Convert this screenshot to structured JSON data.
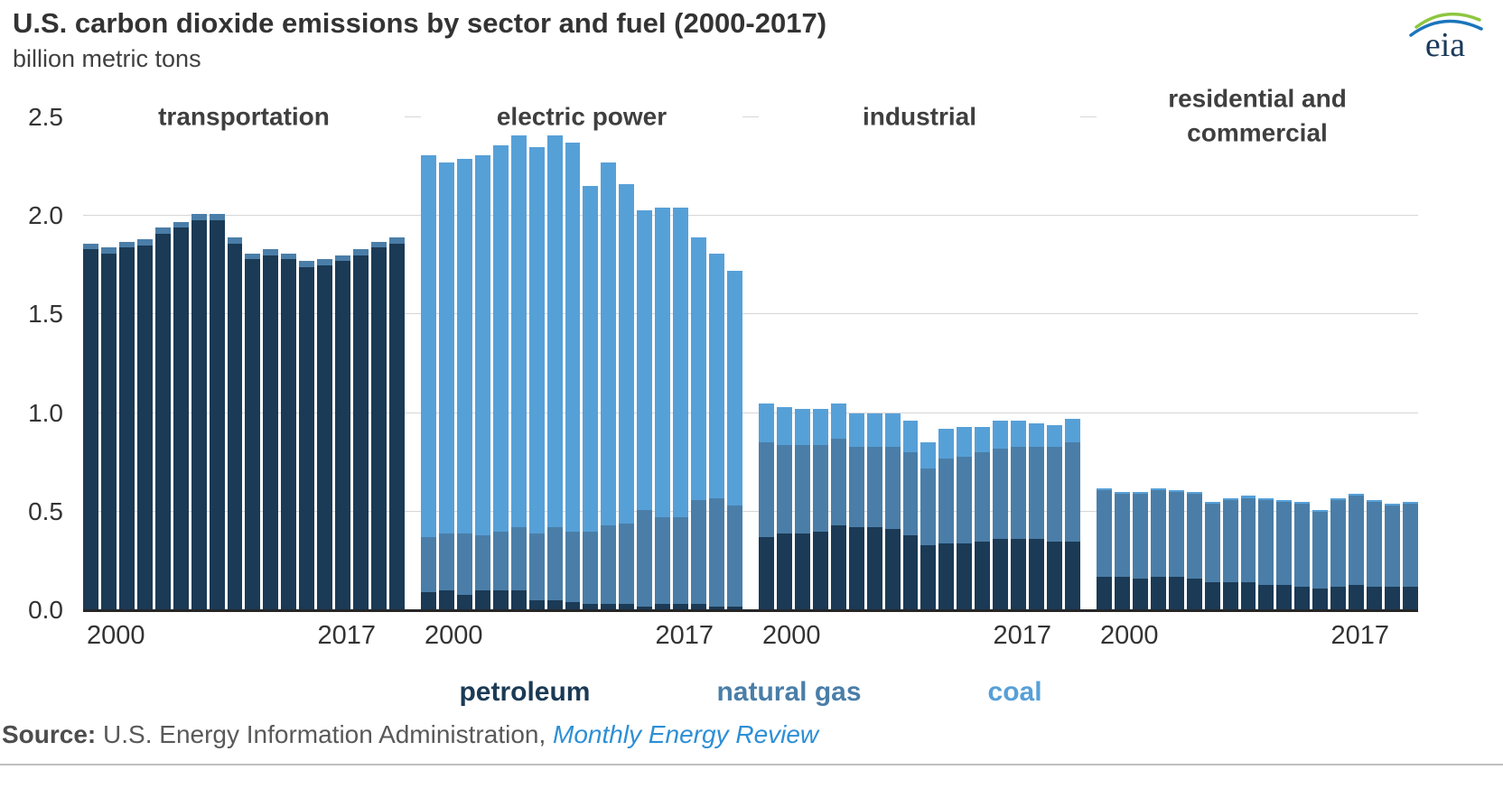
{
  "header": {
    "title": "U.S. carbon dioxide emissions by sector and fuel (2000-2017)",
    "subtitle": "billion metric tons",
    "logo_text": "eia"
  },
  "source": {
    "prefix": "Source:",
    "text": " U.S. Energy Information Administration, ",
    "link": "Monthly Energy Review"
  },
  "chart_data": {
    "type": "bar",
    "stacked": true,
    "title": "U.S. carbon dioxide emissions by sector and fuel (2000-2017)",
    "ylabel": "billion metric tons",
    "ylim": [
      0,
      2.5
    ],
    "yticks": [
      0.0,
      0.5,
      1.0,
      1.5,
      2.0,
      2.5
    ],
    "grid": true,
    "legend_position": "bottom",
    "years": [
      2000,
      2001,
      2002,
      2003,
      2004,
      2005,
      2006,
      2007,
      2008,
      2009,
      2010,
      2011,
      2012,
      2013,
      2014,
      2015,
      2016,
      2017
    ],
    "x_tick_labels": [
      "2000",
      "2017"
    ],
    "fuels": [
      {
        "name": "petroleum",
        "color": "#1b3a55"
      },
      {
        "name": "natural gas",
        "color": "#4a7ea8"
      },
      {
        "name": "coal",
        "color": "#56a0d8"
      }
    ],
    "groups": [
      {
        "label": "transportation",
        "series": [
          {
            "name": "petroleum",
            "values": [
              1.83,
              1.81,
              1.84,
              1.85,
              1.91,
              1.94,
              1.98,
              1.98,
              1.86,
              1.78,
              1.8,
              1.78,
              1.74,
              1.75,
              1.77,
              1.8,
              1.84,
              1.86
            ]
          },
          {
            "name": "natural gas",
            "values": [
              0.03,
              0.03,
              0.03,
              0.03,
              0.03,
              0.03,
              0.03,
              0.03,
              0.03,
              0.03,
              0.03,
              0.03,
              0.03,
              0.03,
              0.03,
              0.03,
              0.03,
              0.03
            ]
          },
          {
            "name": "coal",
            "values": [
              0,
              0,
              0,
              0,
              0,
              0,
              0,
              0,
              0,
              0,
              0,
              0,
              0,
              0,
              0,
              0,
              0,
              0
            ]
          }
        ]
      },
      {
        "label": "electric power",
        "series": [
          {
            "name": "petroleum",
            "values": [
              0.09,
              0.1,
              0.08,
              0.1,
              0.1,
              0.1,
              0.05,
              0.05,
              0.04,
              0.03,
              0.03,
              0.03,
              0.02,
              0.03,
              0.03,
              0.03,
              0.02,
              0.02
            ]
          },
          {
            "name": "natural gas",
            "values": [
              0.28,
              0.29,
              0.31,
              0.28,
              0.3,
              0.32,
              0.34,
              0.37,
              0.36,
              0.37,
              0.4,
              0.41,
              0.49,
              0.44,
              0.44,
              0.53,
              0.55,
              0.51
            ]
          },
          {
            "name": "coal",
            "values": [
              1.94,
              1.88,
              1.9,
              1.93,
              1.96,
              1.99,
              1.96,
              1.99,
              1.97,
              1.75,
              1.84,
              1.72,
              1.52,
              1.57,
              1.57,
              1.33,
              1.24,
              1.19
            ]
          }
        ]
      },
      {
        "label": "industrial",
        "series": [
          {
            "name": "petroleum",
            "values": [
              0.37,
              0.39,
              0.39,
              0.4,
              0.43,
              0.42,
              0.42,
              0.41,
              0.38,
              0.33,
              0.34,
              0.34,
              0.35,
              0.36,
              0.36,
              0.36,
              0.35,
              0.35
            ]
          },
          {
            "name": "natural gas",
            "values": [
              0.48,
              0.45,
              0.45,
              0.44,
              0.44,
              0.41,
              0.41,
              0.42,
              0.42,
              0.39,
              0.43,
              0.44,
              0.45,
              0.46,
              0.47,
              0.47,
              0.48,
              0.5
            ]
          },
          {
            "name": "coal",
            "values": [
              0.2,
              0.19,
              0.18,
              0.18,
              0.18,
              0.17,
              0.17,
              0.17,
              0.16,
              0.13,
              0.15,
              0.15,
              0.13,
              0.14,
              0.13,
              0.12,
              0.11,
              0.12
            ]
          }
        ]
      },
      {
        "label": "residential and commercial",
        "series": [
          {
            "name": "petroleum",
            "values": [
              0.17,
              0.17,
              0.16,
              0.17,
              0.17,
              0.16,
              0.14,
              0.14,
              0.14,
              0.13,
              0.13,
              0.12,
              0.11,
              0.12,
              0.13,
              0.12,
              0.12,
              0.12
            ]
          },
          {
            "name": "natural gas",
            "values": [
              0.44,
              0.42,
              0.43,
              0.44,
              0.43,
              0.43,
              0.4,
              0.42,
              0.43,
              0.43,
              0.42,
              0.42,
              0.39,
              0.44,
              0.45,
              0.43,
              0.41,
              0.42
            ]
          },
          {
            "name": "coal",
            "values": [
              0.01,
              0.01,
              0.01,
              0.01,
              0.01,
              0.01,
              0.01,
              0.01,
              0.01,
              0.01,
              0.01,
              0.01,
              0.01,
              0.01,
              0.01,
              0.01,
              0.01,
              0.01
            ]
          }
        ]
      }
    ]
  }
}
